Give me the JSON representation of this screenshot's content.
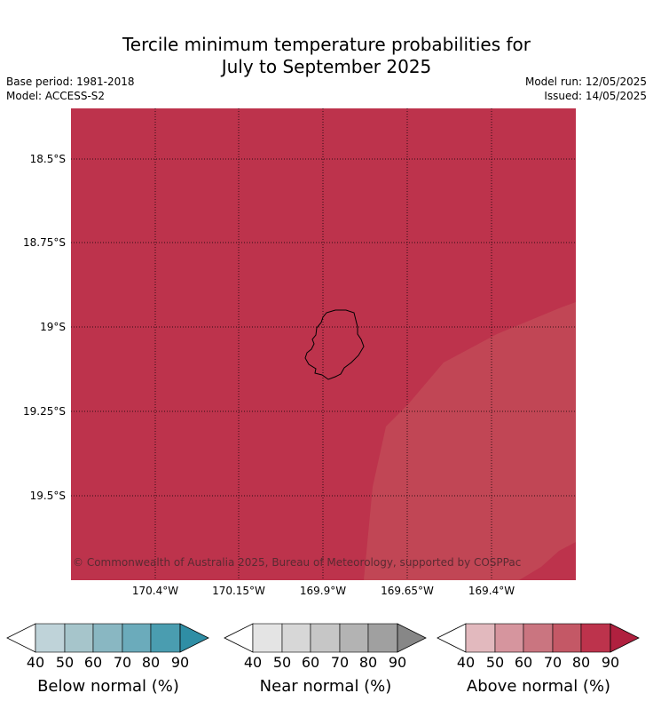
{
  "title": {
    "line1": "Tercile minimum temperature probabilities for",
    "line2": "July to September 2025"
  },
  "meta": {
    "base_period": "Base period: 1981-2018",
    "model": "Model: ACCESS-S2",
    "model_run": "Model run: 12/05/2025",
    "issued": "Issued: 14/05/2025"
  },
  "map": {
    "lat_labels": [
      "18.5°S",
      "18.75°S",
      "19°S",
      "19.25°S",
      "19.5°S"
    ],
    "lon_labels": [
      "170.4°W",
      "170.15°W",
      "169.9°W",
      "169.65°W",
      "169.4°W"
    ],
    "copyright": "© Commonwealth of Australia 2025, Bureau of Meteorology, supported by COSPPac",
    "background_category": "Above normal 80-90%",
    "background_color": "#bd334c",
    "lighter_region_category": "Above normal 70-80%",
    "lighter_region_color": "#c14655",
    "coastline_color": "#000000",
    "grid_style": "dotted"
  },
  "colorbars": [
    {
      "label": "Below normal (%)",
      "ticks": [
        "40",
        "50",
        "60",
        "70",
        "80",
        "90"
      ],
      "colors": [
        "#bfd3d9",
        "#a6c5cb",
        "#89b7c2",
        "#6babbb",
        "#4a9db0",
        "#2f8ea5"
      ]
    },
    {
      "label": "Near normal (%)",
      "ticks": [
        "40",
        "50",
        "60",
        "70",
        "80",
        "90"
      ],
      "colors": [
        "#e4e4e4",
        "#d7d7d7",
        "#c6c6c6",
        "#b3b3b3",
        "#a0a0a0",
        "#878787"
      ]
    },
    {
      "label": "Above normal (%)",
      "ticks": [
        "40",
        "50",
        "60",
        "70",
        "80",
        "90"
      ],
      "colors": [
        "#e2b9be",
        "#d6959e",
        "#ca7580",
        "#c45866",
        "#bd334c",
        "#b0203f"
      ]
    }
  ]
}
